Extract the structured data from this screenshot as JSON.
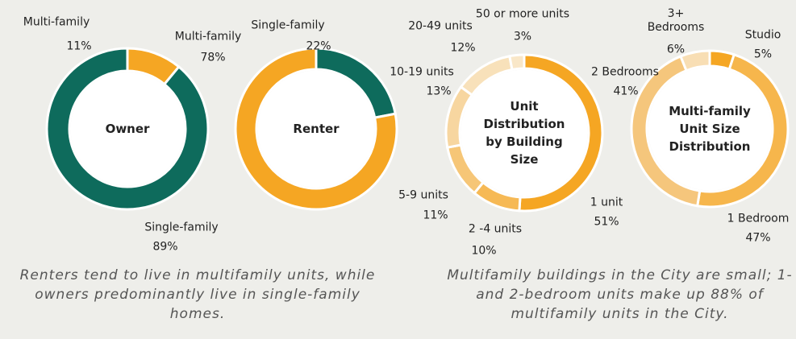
{
  "chart_data": [
    {
      "type": "donut",
      "title": "Owner",
      "categories": [
        "Multi-family",
        "Single-family"
      ],
      "values": [
        11,
        89
      ],
      "value_labels": [
        "11%",
        "89%"
      ],
      "colors": [
        "#f5a623",
        "#0e6b5c"
      ]
    },
    {
      "type": "donut",
      "title": "Renter",
      "categories": [
        "Single-family",
        "Multi-family"
      ],
      "values": [
        22,
        78
      ],
      "value_labels": [
        "22%",
        "78%"
      ],
      "colors": [
        "#0e6b5c",
        "#f5a623"
      ]
    },
    {
      "type": "donut",
      "title": "Unit Distribution by Building Size",
      "categories": [
        "1 unit",
        "2 -4 units",
        "5-9 units",
        "10-19 units",
        "20-49 units",
        "50 or more units"
      ],
      "values": [
        51,
        10,
        11,
        13,
        12,
        3
      ],
      "value_labels": [
        "51%",
        "10%",
        "11%",
        "13%",
        "12%",
        "3%"
      ],
      "colors": [
        "#f5a623",
        "#f6b955",
        "#f6c677",
        "#f7d6a0",
        "#f8e1ba",
        "#f9e7c8"
      ]
    },
    {
      "type": "donut",
      "title": "Multi-family Unit Size Distribution",
      "categories": [
        "Studio",
        "1 Bedroom",
        "2 Bedrooms",
        "3+ Bedrooms"
      ],
      "values": [
        5,
        47,
        41,
        6
      ],
      "value_labels": [
        "5%",
        "47%",
        "41%",
        "6%"
      ],
      "colors": [
        "#f5a623",
        "#f6b64c",
        "#f5c67c",
        "#f8deb4"
      ]
    }
  ],
  "captions": [
    "Renters tend to live in multifamily units, while owners predominantly live in single-family homes.",
    "Multifamily buildings in the City are small; 1- and 2-bedroom units make up 88% of multifamily units in the City."
  ]
}
